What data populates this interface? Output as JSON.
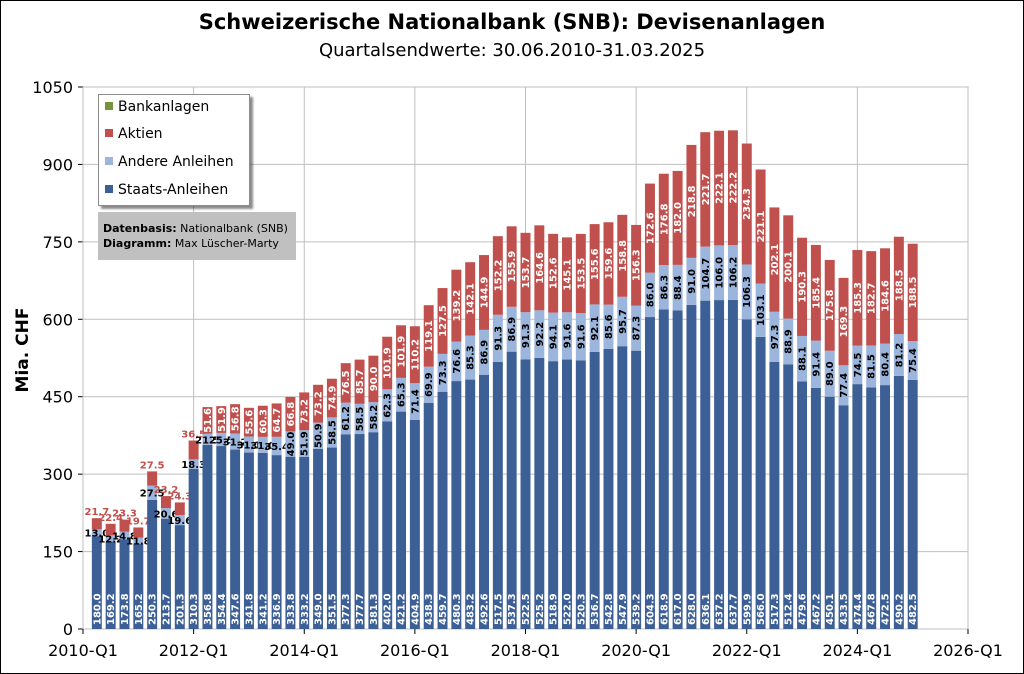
{
  "title": "Schweizerische Nationalbank (SNB): Devisenanlagen",
  "subtitle": "Quartalsendwerte: 30.06.2010-31.03.2025",
  "colors": {
    "staats": "#3c5f95",
    "andere": "#9cb5dc",
    "aktien": "#c0504d",
    "bank": "#77933c",
    "grid": "#bfbfbf",
    "plot_border": "#808080"
  },
  "legend": {
    "items": [
      {
        "label": "Bankanlagen",
        "color": "#77933c"
      },
      {
        "label": "Aktien",
        "color": "#c0504d"
      },
      {
        "label": "Andere Anleihen",
        "color": "#9cb5dc"
      },
      {
        "label": "Staats-Anleihen",
        "color": "#3c5f95"
      }
    ]
  },
  "info": {
    "basis_label": "Datenbasis:",
    "basis_value": "Nationalbank (SNB)",
    "diagram_label": "Diagramm:",
    "diagram_value": "Max Lüscher-Marty"
  },
  "chart_data": {
    "type": "bar",
    "stacked": true,
    "title": "Schweizerische Nationalbank (SNB): Devisenanlagen",
    "subtitle": "Quartalsendwerte: 30.06.2010-31.03.2025",
    "ylabel": "Mia. CHF",
    "xlabel": "",
    "ylim": [
      0,
      1050
    ],
    "yticks": [
      "0",
      "150",
      "300",
      "450",
      "600",
      "750",
      "900",
      "1050"
    ],
    "xticks": [
      "2010-Q1",
      "2012-Q1",
      "2014-Q1",
      "2016-Q1",
      "2018-Q1",
      "2020-Q1",
      "2022-Q1",
      "2024-Q1",
      "2026-Q1"
    ],
    "x_range": [
      "2010-Q1",
      "2026-Q1"
    ],
    "grid": true,
    "legend_position": "top-left",
    "categories": [
      "2010-Q2",
      "2010-Q3",
      "2010-Q4",
      "2011-Q1",
      "2011-Q2",
      "2011-Q3",
      "2011-Q4",
      "2012-Q1",
      "2012-Q2",
      "2012-Q3",
      "2012-Q4",
      "2013-Q1",
      "2013-Q2",
      "2013-Q3",
      "2013-Q4",
      "2014-Q1",
      "2014-Q2",
      "2014-Q3",
      "2014-Q4",
      "2015-Q1",
      "2015-Q2",
      "2015-Q3",
      "2015-Q4",
      "2016-Q1",
      "2016-Q2",
      "2016-Q3",
      "2016-Q4",
      "2017-Q1",
      "2017-Q2",
      "2017-Q3",
      "2017-Q4",
      "2018-Q1",
      "2018-Q2",
      "2018-Q3",
      "2018-Q4",
      "2019-Q1",
      "2019-Q2",
      "2019-Q3",
      "2019-Q4",
      "2020-Q1",
      "2020-Q2",
      "2020-Q3",
      "2020-Q4",
      "2021-Q1",
      "2021-Q2",
      "2021-Q3",
      "2021-Q4",
      "2022-Q1",
      "2022-Q2",
      "2022-Q3",
      "2022-Q4",
      "2023-Q1",
      "2023-Q2",
      "2023-Q3",
      "2023-Q4",
      "2024-Q1",
      "2024-Q2",
      "2024-Q3",
      "2024-Q4",
      "2025-Q1"
    ],
    "series": [
      {
        "name": "Staats-Anleihen",
        "color": "#3c5f95",
        "values": [
          180.0,
          169.2,
          173.8,
          165.2,
          250.3,
          213.7,
          201.3,
          310.3,
          356.8,
          354.4,
          347.6,
          341.8,
          341.2,
          336.9,
          333.8,
          333.2,
          349.0,
          351.5,
          377.3,
          377.7,
          381.3,
          402.0,
          421.2,
          404.9,
          438.3,
          459.7,
          480.3,
          483.2,
          492.6,
          517.5,
          537.3,
          522.5,
          525.2,
          518.9,
          522.0,
          520.3,
          536.7,
          542.8,
          547.9,
          539.2,
          604.3,
          618.9,
          617.0,
          628.0,
          636.1,
          637.2,
          637.7,
          599.9,
          566.0,
          517.3,
          512.4,
          479.6,
          467.2,
          450.1,
          433.5,
          474.4,
          467.8,
          472.5,
          490.2,
          482.5
        ],
        "labels": [
          "180.0",
          "169.2",
          "173.8",
          "165.2",
          "250.3",
          "213.7",
          "201.3",
          "310.3",
          "356.8",
          "354.4",
          "347.6",
          "341.8",
          "341.2",
          "336.9",
          "333.8",
          "333.2",
          "349.0",
          "351.5",
          "377.3",
          "377.7",
          "381.3",
          "402.0",
          "421.2",
          "404.9",
          "438.3",
          "459.7",
          "480.3",
          "483.2",
          "492.6",
          "517.5",
          "537.3",
          "522.5",
          "525.2",
          "518.9",
          "522.0",
          "520.3",
          "536.7",
          "542.8",
          "547.9",
          "539.2",
          "604.3",
          "618.9",
          "617.0",
          "628.0",
          "636.1",
          "637.2",
          "637.7",
          "599.9",
          "566.0",
          "517.3",
          "512.4",
          "479.6",
          "467.2",
          "450.1",
          "433.5",
          "474.4",
          "467.8",
          "472.5",
          "490.2",
          "482.5"
        ]
      },
      {
        "name": "Andere Anleihen",
        "color": "#9cb5dc",
        "values": [
          13.0,
          12.2,
          14.8,
          11.8,
          27.5,
          20.6,
          19.6,
          18.3,
          21.5,
          25.5,
          31.2,
          31.1,
          31.0,
          35.4,
          49.0,
          51.9,
          50.9,
          58.5,
          61.2,
          58.5,
          58.2,
          62.3,
          65.3,
          71.4,
          69.9,
          73.3,
          76.6,
          85.3,
          86.9,
          91.3,
          86.9,
          91.3,
          92.2,
          94.1,
          91.6,
          91.6,
          92.1,
          85.6,
          95.7,
          87.3,
          86.0,
          86.3,
          88.4,
          91.0,
          104.7,
          106.0,
          106.2,
          106.3,
          103.1,
          97.3,
          88.9,
          88.1,
          91.4,
          89.0,
          77.4,
          74.5,
          81.5,
          80.4,
          81.2,
          75.4
        ],
        "labels": [
          "13.0",
          "12.2",
          "14.8",
          "11.8",
          "27.5",
          "20.6",
          "19.6",
          "18.3",
          "21.5",
          "25.5",
          "31.2",
          "31.1",
          "31.0",
          "35.4",
          "49.0",
          "51.9",
          "50.9",
          "58.5",
          "61.2",
          "58.5",
          "58.2",
          "62.3",
          "65.3",
          "71.4",
          "69.9",
          "73.3",
          "76.6",
          "85.3",
          "86.9",
          "91.3",
          "86.9",
          "91.3",
          "92.2",
          "94.1",
          "91.6",
          "91.6",
          "92.1",
          "85.6",
          "95.7",
          "87.3",
          "86.0",
          "86.3",
          "88.4",
          "91.0",
          "104.7",
          "106.0",
          "106.2",
          "106.3",
          "103.1",
          "97.3",
          "88.9",
          "88.1",
          "91.4",
          "89.0",
          "77.4",
          "74.5",
          "81.5",
          "80.4",
          "81.2",
          "75.4"
        ]
      },
      {
        "name": "Aktien",
        "color": "#c0504d",
        "values": [
          21.7,
          22.4,
          23.3,
          19.7,
          27.5,
          23.2,
          24.3,
          36.5,
          51.6,
          51.9,
          56.8,
          55.6,
          60.3,
          64.7,
          66.8,
          73.2,
          73.2,
          74.9,
          76.5,
          85.7,
          90.0,
          101.9,
          101.9,
          110.2,
          119.1,
          127.5,
          139.2,
          142.1,
          144.9,
          152.2,
          155.9,
          153.7,
          164.6,
          152.6,
          145.1,
          153.5,
          155.6,
          159.6,
          158.8,
          156.3,
          172.6,
          176.8,
          182.0,
          218.8,
          221.7,
          222.1,
          222.2,
          234.3,
          221.1,
          202.1,
          200.1,
          190.3,
          185.4,
          175.8,
          169.3,
          185.3,
          182.7,
          184.6,
          188.5,
          188.5
        ],
        "labels": [
          "21.7",
          "22.4",
          "23.3",
          "19.7",
          "27.5",
          "23.2",
          "24.3",
          "36.5",
          "51.6",
          "51.9",
          "56.8",
          "55.6",
          "60.3",
          "64.7",
          "66.8",
          "73.2",
          "73.2",
          "74.9",
          "76.5",
          "85.7",
          "90.0",
          "101.9",
          "101.9",
          "110.2",
          "119.1",
          "127.5",
          "139.2",
          "142.1",
          "144.9",
          "152.2",
          "155.9",
          "153.7",
          "164.6",
          "152.6",
          "145.1",
          "153.5",
          "155.6",
          "159.6",
          "158.8",
          "156.3",
          "172.6",
          "176.8",
          "182.0",
          "218.8",
          "221.7",
          "222.1",
          "222.2",
          "234.3",
          "221.1",
          "202.1",
          "200.1",
          "190.3",
          "185.4",
          "175.8",
          "169.3",
          "185.3",
          "182.7",
          "184.6",
          "188.5",
          "188.5"
        ]
      },
      {
        "name": "Bankanlagen",
        "color": "#77933c",
        "values": [
          0,
          0,
          0,
          0,
          0,
          0,
          0,
          0,
          0,
          0,
          0,
          0,
          0,
          0,
          0,
          0,
          0,
          0,
          0,
          0,
          0,
          0,
          0,
          0,
          0,
          0,
          0,
          0,
          0,
          0,
          0,
          0,
          0,
          0,
          0,
          0,
          0,
          0,
          0,
          0,
          0,
          0,
          0,
          0,
          0,
          0,
          0,
          0,
          0,
          0,
          0,
          0,
          0,
          0,
          0,
          0,
          0,
          0,
          0,
          0
        ]
      }
    ]
  }
}
